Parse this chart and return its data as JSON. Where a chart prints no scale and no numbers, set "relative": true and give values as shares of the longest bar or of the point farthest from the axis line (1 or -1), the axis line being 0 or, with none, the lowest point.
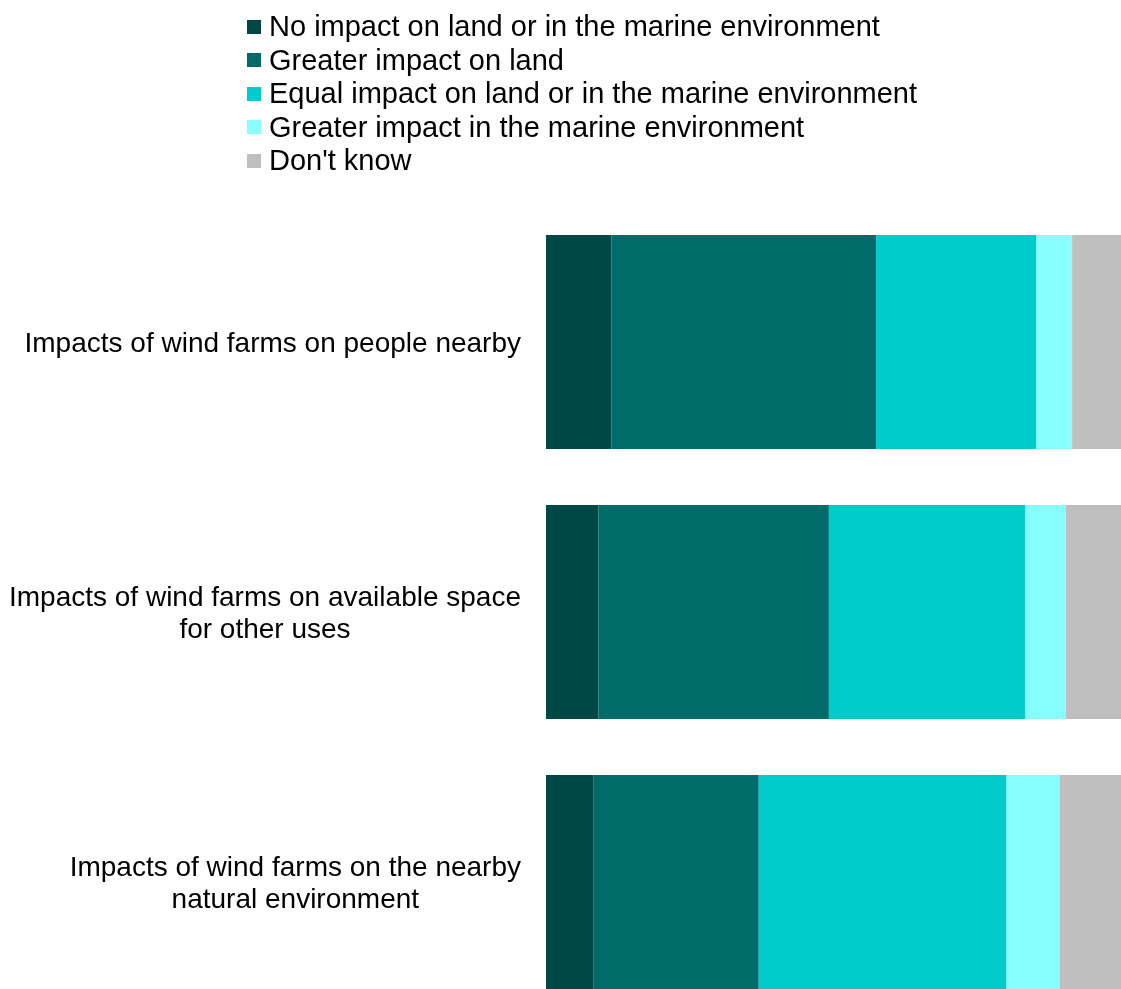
{
  "chart_data": {
    "type": "bar",
    "orientation": "horizontal",
    "stacked": true,
    "relative": true,
    "legend": "top",
    "categories": [
      "Impacts of wind farms on people nearby",
      "Impacts of wind farms on available space for other uses",
      "Impacts of wind farms on the nearby natural environment"
    ],
    "series": [
      {
        "name": "No impact on land or in the marine environment",
        "color": "#004846",
        "values": [
          0.114,
          0.091,
          0.082
        ]
      },
      {
        "name": "Greater impact on land",
        "color": "#006b68",
        "values": [
          0.46,
          0.401,
          0.288
        ]
      },
      {
        "name": "Equal impact on land or in the marine environment",
        "color": "#00cccc",
        "values": [
          0.279,
          0.341,
          0.431
        ]
      },
      {
        "name": "Greater impact in the marine environment",
        "color": "#88ffff",
        "values": [
          0.062,
          0.071,
          0.092
        ]
      },
      {
        "name": "Don't know",
        "color": "#c0bfc0",
        "values": [
          0.085,
          0.096,
          0.107
        ]
      }
    ]
  }
}
